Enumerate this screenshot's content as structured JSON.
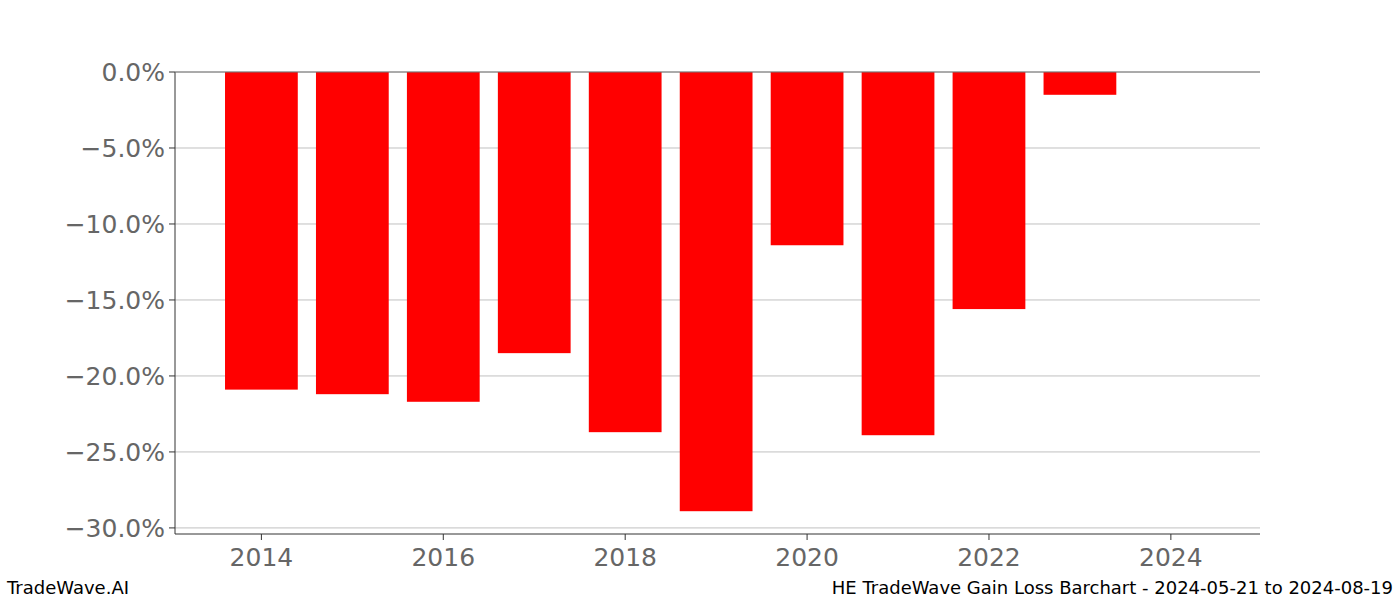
{
  "chart_data": {
    "type": "bar",
    "title": "HE TradeWave Gain Loss Barchart - 2024-05-21 to 2024-08-19",
    "source": "TradeWave.AI",
    "x": [
      2014,
      2015,
      2016,
      2017,
      2018,
      2019,
      2020,
      2021,
      2022,
      2023
    ],
    "values": [
      -20.9,
      -21.2,
      -21.7,
      -18.5,
      -23.7,
      -28.9,
      -11.4,
      -23.9,
      -15.6,
      -1.5
    ],
    "color": "#ff0000",
    "xlim": [
      2013.05,
      2024.98
    ],
    "xticks": [
      2014,
      2016,
      2018,
      2020,
      2022,
      2024
    ],
    "ylim": [
      -30.4,
      0
    ],
    "yticks": [
      {
        "value": 0,
        "label": "0.0%"
      },
      {
        "value": -5,
        "label": "−5.0%"
      },
      {
        "value": -10,
        "label": "−10.0%"
      },
      {
        "value": -15,
        "label": "−15.0%"
      },
      {
        "value": -20,
        "label": "−20.0%"
      },
      {
        "value": -25,
        "label": "−25.0%"
      },
      {
        "value": -30,
        "label": "−30.0%"
      }
    ],
    "grid": true
  }
}
